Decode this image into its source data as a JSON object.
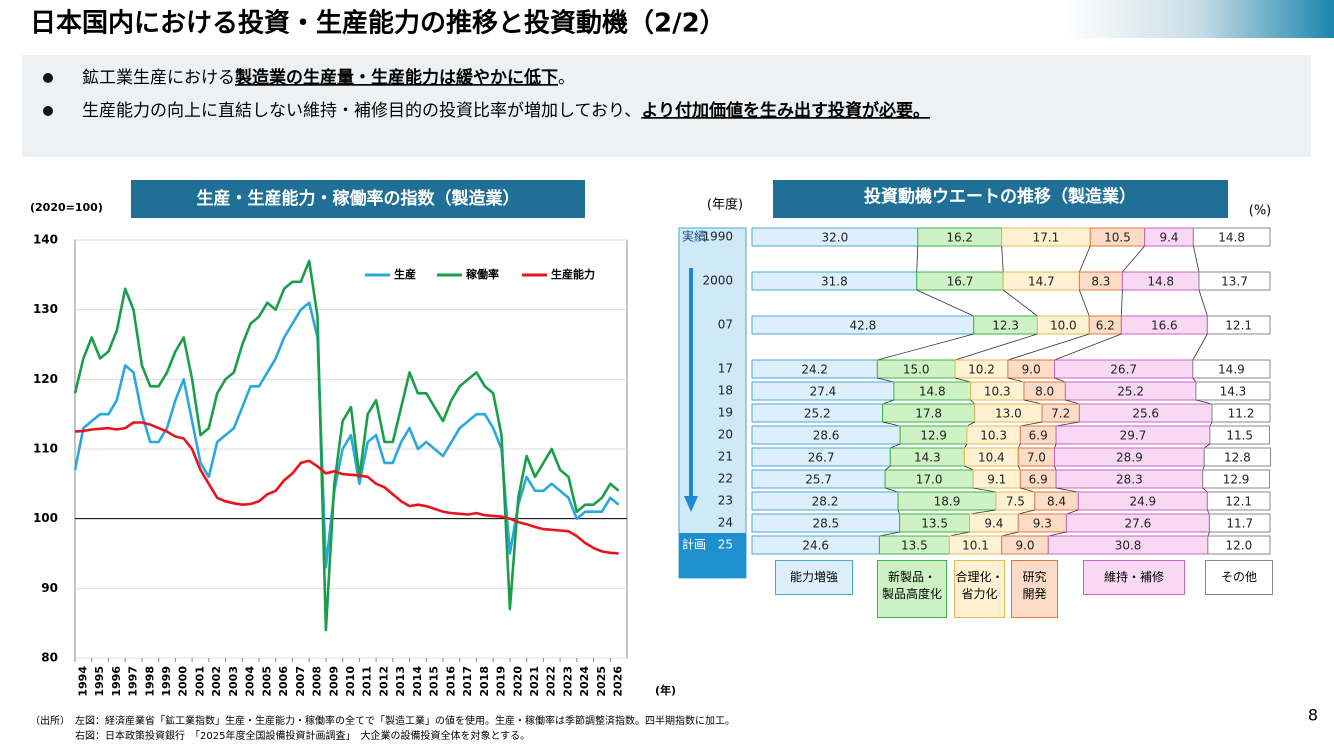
{
  "title": "日本国内における投資・生産能力の推移と投資動機（2/2）",
  "bullets": [
    [
      {
        "text": "鉱工業生産における"
      },
      {
        "text": "製造業の生産量・生産能力は緩やかに低下",
        "bold": true
      },
      {
        "text": "。"
      }
    ],
    [
      {
        "text": "生産能力の向上に直結しない維持・補修目的の投資比率が増加しており、"
      },
      {
        "text": "より付加価値を生み出す投資が必要。",
        "bold": true
      }
    ]
  ],
  "chart_data": [
    {
      "type": "line",
      "title": "生産・生産能力・稼働率の指数（製造業）",
      "ylabel": "(2020=100)",
      "xlabel": "(年)",
      "x": [
        1994,
        1994.5,
        1995,
        1995.5,
        1996,
        1996.5,
        1997,
        1997.5,
        1998,
        1998.5,
        1999,
        1999.5,
        2000,
        2000.5,
        2001,
        2001.5,
        2002,
        2002.5,
        2003,
        2003.5,
        2004,
        2004.5,
        2005,
        2005.5,
        2006,
        2006.5,
        2007,
        2007.5,
        2008,
        2008.5,
        2009,
        2009.5,
        2010,
        2010.5,
        2011,
        2011.5,
        2012,
        2012.5,
        2013,
        2013.5,
        2014,
        2014.5,
        2015,
        2015.5,
        2016,
        2016.5,
        2017,
        2017.5,
        2018,
        2018.5,
        2019,
        2019.5,
        2020,
        2020.5,
        2021,
        2021.5,
        2022,
        2022.5,
        2023,
        2023.5,
        2024,
        2024.5,
        2025,
        2025.5,
        2026,
        2026.5
      ],
      "series": [
        {
          "name": "生産",
          "color": "#29a8e0",
          "values": [
            107,
            113,
            114,
            115,
            115,
            117,
            122,
            121,
            115,
            111,
            111,
            113,
            117,
            120,
            114,
            108,
            106,
            111,
            112,
            113,
            116,
            119,
            119,
            121,
            123,
            126,
            128,
            130,
            131,
            126,
            93,
            104,
            110,
            112,
            105,
            111,
            112,
            108,
            108,
            111,
            113,
            110,
            111,
            110,
            109,
            111,
            113,
            114,
            115,
            115,
            113,
            110,
            95,
            102,
            106,
            104,
            104,
            105,
            104,
            103,
            100,
            101,
            101,
            101,
            103,
            102
          ]
        },
        {
          "name": "稼働率",
          "color": "#1a9e4a",
          "values": [
            118,
            123,
            126,
            123,
            124,
            127,
            133,
            130,
            122,
            119,
            119,
            121,
            124,
            126,
            120,
            112,
            113,
            118,
            120,
            121,
            125,
            128,
            129,
            131,
            130,
            133,
            134,
            134,
            137,
            129,
            84,
            105,
            114,
            116,
            106,
            115,
            117,
            111,
            111,
            116,
            121,
            118,
            118,
            116,
            114,
            117,
            119,
            120,
            121,
            119,
            118,
            112,
            87,
            103,
            109,
            106,
            108,
            110,
            107,
            106,
            101,
            102,
            102,
            103,
            105,
            104
          ]
        },
        {
          "name": "生産能力",
          "color": "#e8141c",
          "values": [
            112.5,
            112.6,
            112.8,
            112.9,
            113,
            112.8,
            113,
            113.8,
            113.8,
            113.5,
            113,
            112.5,
            111.8,
            111.5,
            110,
            107,
            105,
            103,
            102.5,
            102.2,
            102,
            102.1,
            102.5,
            103.5,
            104,
            105.5,
            106.5,
            108,
            108.3,
            107.5,
            106.5,
            106.8,
            106.4,
            106.3,
            106.2,
            106,
            105,
            104.5,
            103.5,
            102.5,
            101.8,
            102,
            101.8,
            101.4,
            101,
            100.8,
            100.7,
            100.6,
            100.8,
            100.5,
            100.4,
            100.3,
            100,
            99.5,
            99.2,
            98.8,
            98.5,
            98.4,
            98.3,
            98.2,
            97.5,
            96.5,
            95.8,
            95.3,
            95.1,
            95
          ]
        }
      ],
      "xlim": [
        1994,
        2027
      ],
      "xticks": [
        1994,
        1995,
        1996,
        1997,
        1998,
        1999,
        2000,
        2001,
        2002,
        2003,
        2004,
        2005,
        2006,
        2007,
        2008,
        2009,
        2010,
        2011,
        2012,
        2013,
        2014,
        2015,
        2016,
        2017,
        2018,
        2019,
        2020,
        2021,
        2022,
        2023,
        2024,
        2025,
        2026
      ],
      "ylim": [
        80,
        140
      ],
      "yticks": [
        80,
        90,
        100,
        110,
        120,
        130,
        140
      ],
      "grid": true,
      "reference_line": 100,
      "legend": "top-right"
    },
    {
      "type": "stacked-barh",
      "title": "投資動機ウエートの推移（製造業）",
      "ylabel": "(年度)",
      "unit": "(%)",
      "categories": [
        "1990",
        "2000",
        "07",
        "17",
        "18",
        "19",
        "20",
        "21",
        "22",
        "23",
        "24",
        "25"
      ],
      "annotations": [
        "実績",
        "計画"
      ],
      "xlim": [
        0,
        100
      ],
      "series": [
        {
          "name": "能力増強",
          "color": "#dceffb",
          "edge": "#4aa8d8",
          "values": [
            32,
            31.8,
            42.8,
            24.2,
            27.4,
            25.2,
            28.6,
            26.7,
            25.7,
            28.2,
            28.5,
            24.6
          ],
          "value_labels": [
            "32.0",
            "31.8",
            "42.8",
            "24.2",
            "27.4",
            "25.2",
            "28.6",
            "26.7",
            "25.7",
            "28.2",
            "28.5",
            "24.6"
          ]
        },
        {
          "name": "新製品・\n製品高度化",
          "color": "#cff2c4",
          "edge": "#3cb44b",
          "values": [
            16.2,
            16.7,
            12.3,
            15,
            14.8,
            17.8,
            12.9,
            14.3,
            17,
            18.9,
            13.5,
            13.5
          ],
          "value_labels": [
            "16.2",
            "16.7",
            "12.3",
            "15.0",
            "14.8",
            "17.8",
            "12.9",
            "14.3",
            "17.0",
            "18.9",
            "13.5",
            "13.5"
          ]
        },
        {
          "name": "合理化・\n省力化",
          "color": "#fff2d2",
          "edge": "#e8b850",
          "values": [
            17.1,
            14.7,
            10,
            10.2,
            10.3,
            13,
            10.3,
            10.4,
            9.1,
            7.5,
            9.4,
            10.1
          ],
          "value_labels": [
            "17.1",
            "14.7",
            "10.0",
            "10.2",
            "10.3",
            "13.0",
            "10.3",
            "10.4",
            "9.1",
            "7.5",
            "9.4",
            "10.1"
          ]
        },
        {
          "name": "研究\n開発",
          "color": "#fcdcc6",
          "edge": "#e07a40",
          "values": [
            10.5,
            8.3,
            6.2,
            9,
            8,
            7.2,
            6.9,
            7,
            6.9,
            8.4,
            9.3,
            9
          ],
          "value_labels": [
            "10.5",
            "8.3",
            "6.2",
            "9.0",
            "8.0",
            "7.2",
            "6.9",
            "7.0",
            "6.9",
            "8.4",
            "9.3",
            "9.0"
          ]
        },
        {
          "name": "維持・補修",
          "color": "#f9d8f4",
          "edge": "#c860c8",
          "values": [
            9.4,
            14.8,
            16.6,
            26.7,
            25.2,
            25.6,
            29.7,
            28.9,
            28.3,
            24.9,
            27.6,
            30.8
          ],
          "value_labels": [
            "9.4",
            "14.8",
            "16.6",
            "26.7",
            "25.2",
            "25.6",
            "29.7",
            "28.9",
            "28.3",
            "24.9",
            "27.6",
            "30.8"
          ]
        },
        {
          "name": "その他",
          "color": "#ffffff",
          "edge": "#888888",
          "values": [
            14.8,
            13.7,
            12.1,
            14.9,
            14.3,
            11.2,
            11.5,
            12.8,
            12.9,
            12.1,
            11.7,
            12
          ],
          "value_labels": [
            "14.8",
            "13.7",
            "12.1",
            "14.9",
            "14.3",
            "11.2",
            "11.5",
            "12.8",
            "12.9",
            "12.1",
            "11.7",
            "12.0"
          ]
        }
      ]
    }
  ],
  "source_label": "（出所）",
  "source_lines": [
    "左図：経済産業省「鉱工業指数」生産・生産能力・稼働率の全てで「製造工業」の値を使用。生産・稼働率は季節調整済指数。四半期指数に加工。",
    "右図：日本政策投資銀行　「2025年度全国設備投資計画調査」　大企業の設備投資全体を対象とする。"
  ],
  "page_number": "8"
}
